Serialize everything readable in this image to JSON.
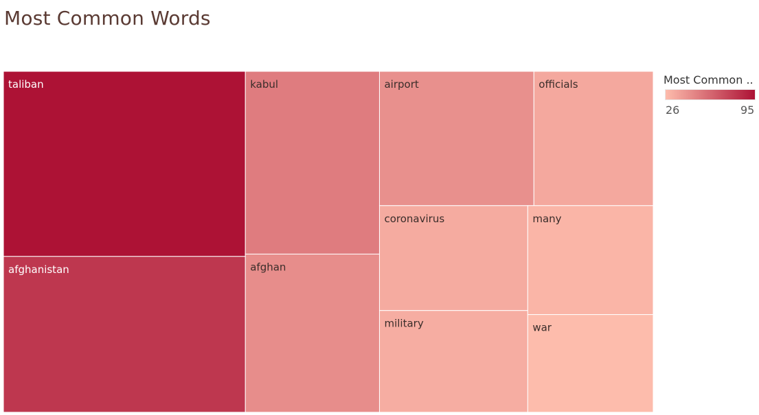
{
  "chart_data": {
    "type": "treemap",
    "title": "Most Common Words",
    "items": [
      {
        "label": "taliban",
        "value": 95
      },
      {
        "label": "afghanistan",
        "value": 80
      },
      {
        "label": "kabul",
        "value": 52
      },
      {
        "label": "afghan",
        "value": 45
      },
      {
        "label": "airport",
        "value": 44
      },
      {
        "label": "officials",
        "value": 34
      },
      {
        "label": "coronavirus",
        "value": 33
      },
      {
        "label": "military",
        "value": 32
      },
      {
        "label": "many",
        "value": 29
      },
      {
        "label": "war",
        "value": 26
      }
    ],
    "legend": {
      "title": "Most Common ..",
      "min": 26,
      "max": 95,
      "color_min": "#fdbcac",
      "color_max": "#ad1235",
      "placement": "right"
    }
  }
}
